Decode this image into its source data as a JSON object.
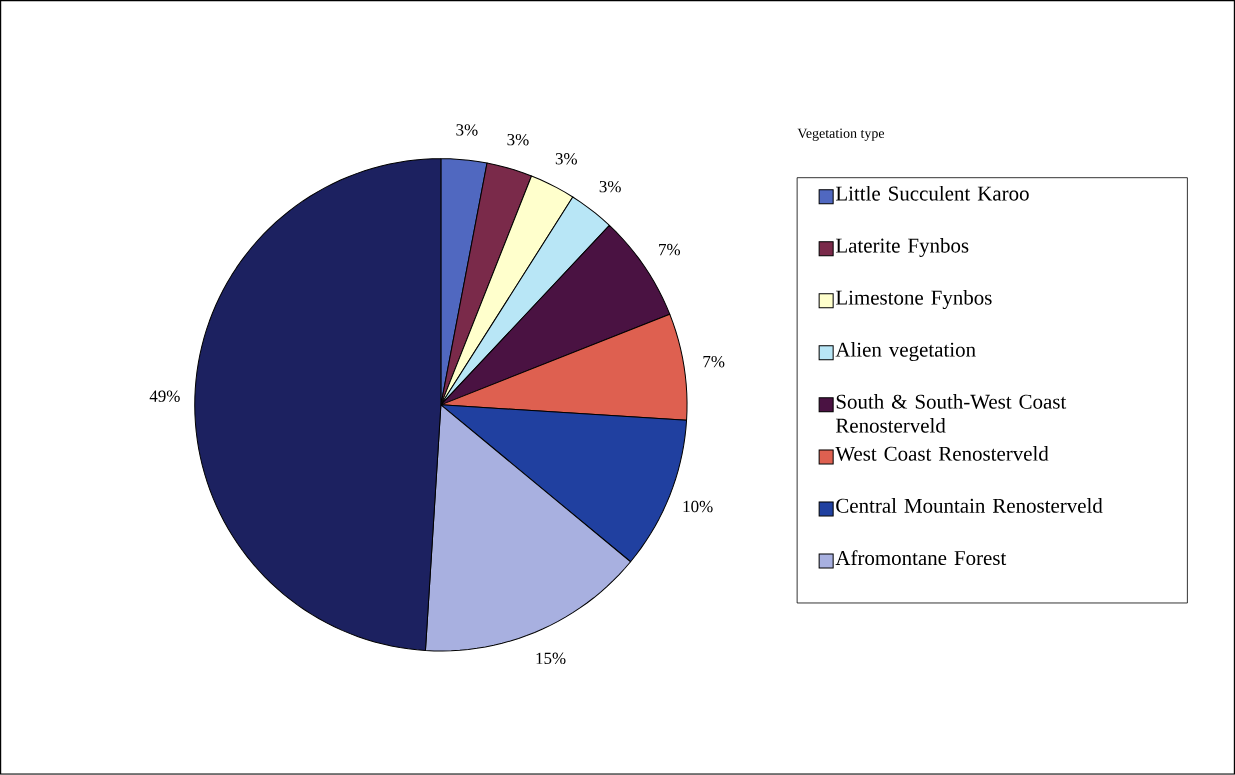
{
  "chart_data": {
    "type": "pie",
    "legend_title": "Vegetation type",
    "categories": [
      "Little Succulent Karoo",
      "Laterite Fynbos",
      "Limestone Fynbos",
      "Alien vegetation",
      "South & South-West Coast Renosterveld",
      "West Coast Renosterveld",
      "Central Mountain Renosterveld",
      "Afromontane Forest",
      null
    ],
    "values": [
      3,
      3,
      3,
      3,
      7,
      7,
      10,
      15,
      49
    ],
    "value_labels": [
      "3%",
      "3%",
      "3%",
      "3%",
      "7%",
      "7%",
      "10%",
      "15%",
      "49%"
    ],
    "colors": [
      "#5068c0",
      "#7a2a4a",
      "#ffffcc",
      "#b8e6f6",
      "#4a1242",
      "#de6050",
      "#2040a0",
      "#a8b0e0",
      "#1c2160"
    ],
    "legend": "right"
  }
}
